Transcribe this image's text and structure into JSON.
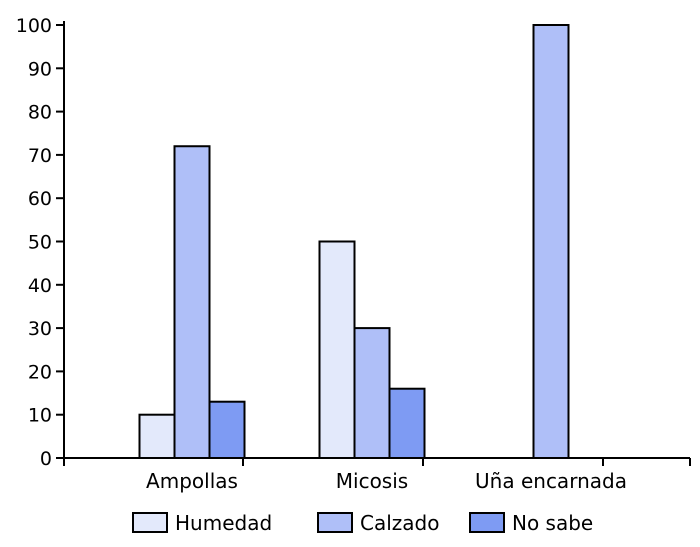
{
  "chart_data": {
    "type": "bar",
    "categories": [
      "Ampollas",
      "Micosis",
      "Uña encarnada"
    ],
    "series": [
      {
        "name": "Humedad",
        "values": [
          10,
          50,
          0
        ],
        "color": "#e3e9fb"
      },
      {
        "name": "Calzado",
        "values": [
          72,
          30,
          100
        ],
        "color": "#afbff8"
      },
      {
        "name": "No sabe",
        "values": [
          13,
          16,
          0
        ],
        "color": "#7e9bf3"
      }
    ],
    "ylim": [
      0,
      100
    ],
    "yticks": [
      "0",
      "10",
      "20",
      "30",
      "40",
      "50",
      "60",
      "70",
      "80",
      "90",
      "100"
    ],
    "grid": false,
    "legend_position": "bottom"
  }
}
